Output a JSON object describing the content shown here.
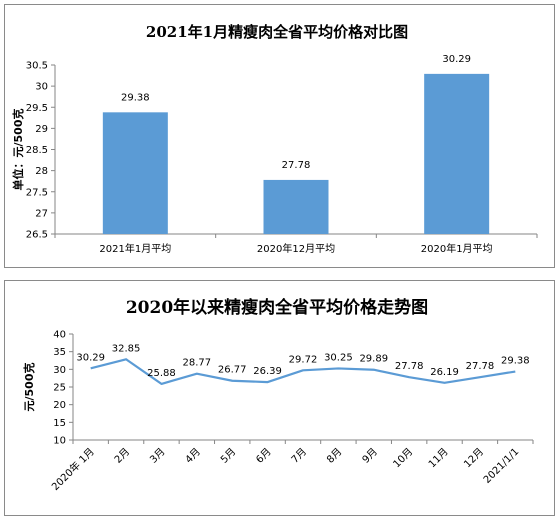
{
  "chart_data": [
    {
      "type": "bar",
      "title": "2021年1月精瘦肉全省平均价格对比图",
      "ylabel": "单位：元/500克",
      "xlabel": "",
      "categories": [
        "2021年1月平均",
        "2020年12月平均",
        "2020年1月平均"
      ],
      "values": [
        29.38,
        27.78,
        30.29
      ],
      "ylim": [
        26.5,
        30.5
      ],
      "yticks": [
        26.5,
        27,
        27.5,
        28,
        28.5,
        29,
        29.5,
        30,
        30.5
      ],
      "ytick_labels": [
        "26.5",
        "27",
        "27.5",
        "28",
        "28.5",
        "29",
        "29.5",
        "30",
        "30.5"
      ],
      "value_labels": [
        "29.38",
        "27.78",
        "30.29"
      ],
      "bar_color": "#5B9BD5",
      "grid": false,
      "legend": "none"
    },
    {
      "type": "line",
      "title": "2020年以来精瘦肉全省平均价格走势图",
      "ylabel": "元/500克",
      "xlabel": "",
      "categories": [
        "2020年 1月",
        "2月",
        "3月",
        "4月",
        "5月",
        "6月",
        "7月",
        "8月",
        "9月",
        "10月",
        "11月",
        "12月",
        "2021/1/1"
      ],
      "values": [
        30.29,
        32.85,
        25.88,
        28.77,
        26.77,
        26.39,
        29.72,
        30.25,
        29.89,
        27.78,
        26.19,
        27.78,
        29.38
      ],
      "ylim": [
        10,
        40
      ],
      "yticks": [
        10,
        15,
        20,
        25,
        30,
        35,
        40
      ],
      "ytick_labels": [
        "10",
        "15",
        "20",
        "25",
        "30",
        "35",
        "40"
      ],
      "value_labels": [
        "30.29",
        "32.85",
        "25.88",
        "28.77",
        "26.77",
        "26.39",
        "29.72",
        "30.25",
        "29.89",
        "27.78",
        "26.19",
        "27.78",
        "29.38"
      ],
      "line_color": "#5B9BD5",
      "grid": false,
      "legend": "none"
    }
  ]
}
